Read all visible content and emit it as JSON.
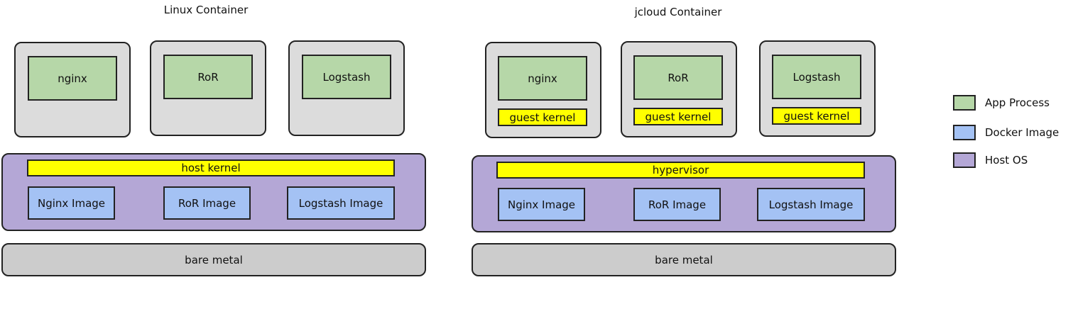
{
  "colors": {
    "app_process": "#b6d7a8",
    "docker_image": "#a4c2f4",
    "host_os": "#b4a7d6",
    "kernel": "#ffff00",
    "container": "#dcdcdc",
    "bare_metal": "#cccccc"
  },
  "linux": {
    "title": "Linux Container",
    "apps": [
      "nginx",
      "RoR",
      "Logstash"
    ],
    "kernel": "host kernel",
    "images": [
      "Nginx Image",
      "RoR Image",
      "Logstash Image"
    ],
    "metal": "bare metal"
  },
  "jcloud": {
    "title": "jcloud Container",
    "apps": [
      "nginx",
      "RoR",
      "Logstash"
    ],
    "guest_kernel": "guest kernel",
    "hypervisor": "hypervisor",
    "images": [
      "Nginx Image",
      "RoR Image",
      "Logstash Image"
    ],
    "metal": "bare metal"
  },
  "legend": [
    {
      "label": "App Process"
    },
    {
      "label": "Docker Image"
    },
    {
      "label": "Host OS"
    }
  ]
}
